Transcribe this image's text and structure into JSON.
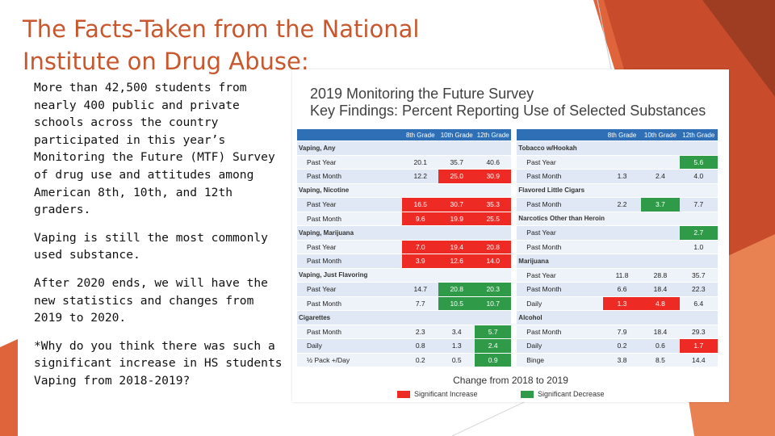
{
  "slide": {
    "title_lines": [
      "The Facts-Taken from the National",
      "Institute on Drug Abuse:"
    ],
    "paragraphs": [
      [
        "More than 42,500 students from",
        "nearly 400 public and private",
        "schools across the country",
        "participated in this year’s",
        "Monitoring the Future (MTF) Survey",
        "of drug use and attitudes among",
        "American 8th, 10th, and 12th",
        "graders."
      ],
      [
        "Vaping is still the most commonly",
        "used substance."
      ],
      [
        "After 2020 ends, we will have the",
        "new statistics and changes from",
        "2019 to 2020."
      ],
      [
        "*Why do you think there was such a",
        "significant increase in HS students",
        "Vaping from 2018-2019?"
      ]
    ],
    "accent_color": "#c8572d"
  },
  "figure": {
    "title_lines": [
      "2019 Monitoring the Future Survey",
      "Key Findings: Percent Reporting Use of Selected Substances"
    ],
    "headers": {
      "left": [
        "8th Grade",
        "10th Grade",
        "12th Grade"
      ],
      "right": [
        "8th Grade",
        "10th Grade",
        "12th Grade"
      ]
    },
    "rows": [
      {
        "l": {
          "sec": "Vaping, Any"
        },
        "r": {
          "sec": "Tobacco w/Hookah"
        }
      },
      {
        "l": {
          "label": "Past Year",
          "v": [
            "20.1",
            "35.7",
            "40.6"
          ],
          "s": [
            "",
            "",
            ""
          ]
        },
        "r": {
          "label": "Past Year",
          "v": [
            "",
            "",
            "5.6"
          ],
          "s": [
            "",
            "",
            "down"
          ]
        }
      },
      {
        "l": {
          "label": "Past Month",
          "v": [
            "12.2",
            "25.0",
            "30.9"
          ],
          "s": [
            "",
            "up",
            "up"
          ]
        },
        "r": {
          "label": "Past Month",
          "v": [
            "1.3",
            "2.4",
            "4.0"
          ],
          "s": [
            "",
            "",
            ""
          ]
        }
      },
      {
        "l": {
          "sec": "Vaping, Nicotine"
        },
        "r": {
          "sec": "Flavored Little Cigars"
        }
      },
      {
        "l": {
          "label": "Past Year",
          "v": [
            "16.5",
            "30.7",
            "35.3"
          ],
          "s": [
            "up",
            "up",
            "up"
          ]
        },
        "r": {
          "label": "Past Month",
          "v": [
            "2.2",
            "3.7",
            "7.7"
          ],
          "s": [
            "",
            "down",
            ""
          ]
        }
      },
      {
        "l": {
          "label": "Past Month",
          "v": [
            "9.6",
            "19.9",
            "25.5"
          ],
          "s": [
            "up",
            "up",
            "up"
          ]
        },
        "r": {
          "sec": "Narcotics Other than Heroin"
        }
      },
      {
        "l": {
          "sec": "Vaping, Marijuana"
        },
        "r": {
          "label": "Past Year",
          "v": [
            "",
            "",
            "2.7"
          ],
          "s": [
            "",
            "",
            "down"
          ]
        }
      },
      {
        "l": {
          "label": "Past Year",
          "v": [
            "7.0",
            "19.4",
            "20.8"
          ],
          "s": [
            "up",
            "up",
            "up"
          ]
        },
        "r": {
          "label": "Past Month",
          "v": [
            "",
            "",
            "1.0"
          ],
          "s": [
            "",
            "",
            ""
          ]
        }
      },
      {
        "l": {
          "label": "Past Month",
          "v": [
            "3.9",
            "12.6",
            "14.0"
          ],
          "s": [
            "up",
            "up",
            "up"
          ]
        },
        "r": {
          "sec": "Marijuana"
        }
      },
      {
        "l": {
          "sec": "Vaping, Just Flavoring"
        },
        "r": {
          "label": "Past Year",
          "v": [
            "11.8",
            "28.8",
            "35.7"
          ],
          "s": [
            "",
            "",
            ""
          ]
        }
      },
      {
        "l": {
          "label": "Past Year",
          "v": [
            "14.7",
            "20.8",
            "20.3"
          ],
          "s": [
            "",
            "down",
            "down"
          ]
        },
        "r": {
          "label": "Past Month",
          "v": [
            "6.6",
            "18.4",
            "22.3"
          ],
          "s": [
            "",
            "",
            ""
          ]
        }
      },
      {
        "l": {
          "label": "Past Month",
          "v": [
            "7.7",
            "10.5",
            "10.7"
          ],
          "s": [
            "",
            "down",
            "down"
          ]
        },
        "r": {
          "label": "Daily",
          "v": [
            "1.3",
            "4.8",
            "6.4"
          ],
          "s": [
            "up",
            "up",
            ""
          ]
        }
      },
      {
        "l": {
          "sec": "Cigarettes"
        },
        "r": {
          "sec": "Alcohol"
        }
      },
      {
        "l": {
          "label": "Past Month",
          "v": [
            "2.3",
            "3.4",
            "5.7"
          ],
          "s": [
            "",
            "",
            "down"
          ]
        },
        "r": {
          "label": "Past Month",
          "v": [
            "7.9",
            "18.4",
            "29.3"
          ],
          "s": [
            "",
            "",
            ""
          ]
        }
      },
      {
        "l": {
          "label": "Daily",
          "v": [
            "0.8",
            "1.3",
            "2.4"
          ],
          "s": [
            "",
            "",
            "down"
          ]
        },
        "r": {
          "label": "Daily",
          "v": [
            "0.2",
            "0.6",
            "1.7"
          ],
          "s": [
            "",
            "",
            "up"
          ]
        }
      },
      {
        "l": {
          "label": "½ Pack +/Day",
          "v": [
            "0.2",
            "0.5",
            "0.9"
          ],
          "s": [
            "",
            "",
            "down"
          ]
        },
        "r": {
          "label": "Binge",
          "v": [
            "3.8",
            "8.5",
            "14.4"
          ],
          "s": [
            "",
            "",
            ""
          ]
        }
      }
    ],
    "footer": "Change from 2018 to 2019",
    "legend": {
      "increase": "Significant Increase",
      "decrease": "Significant Decrease"
    },
    "colors": {
      "header": "#2f6fb5",
      "increase": "#ee2a24",
      "decrease": "#2f9a48",
      "row_a": "#dfe8f4",
      "row_b": "#eef3f9"
    }
  }
}
